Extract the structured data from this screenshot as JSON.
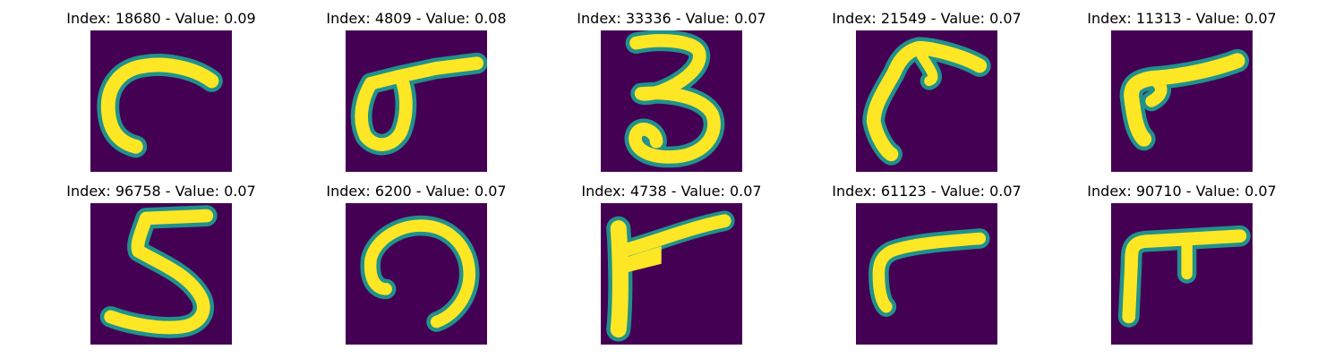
{
  "colors": {
    "background": "#440154",
    "edge": "#21918c",
    "stroke": "#fde725"
  },
  "panels": [
    {
      "title": "Index: 18680 - Value: 0.09"
    },
    {
      "title": "Index: 4809 - Value: 0.08"
    },
    {
      "title": "Index: 33336 - Value: 0.07"
    },
    {
      "title": "Index: 21549 - Value: 0.07"
    },
    {
      "title": "Index: 11313 - Value: 0.07"
    },
    {
      "title": "Index: 96758 - Value: 0.07"
    },
    {
      "title": "Index: 6200 - Value: 0.07"
    },
    {
      "title": "Index: 4738 - Value: 0.07"
    },
    {
      "title": "Index: 61123 - Value: 0.07"
    },
    {
      "title": "Index: 90710 - Value: 0.07"
    }
  ]
}
